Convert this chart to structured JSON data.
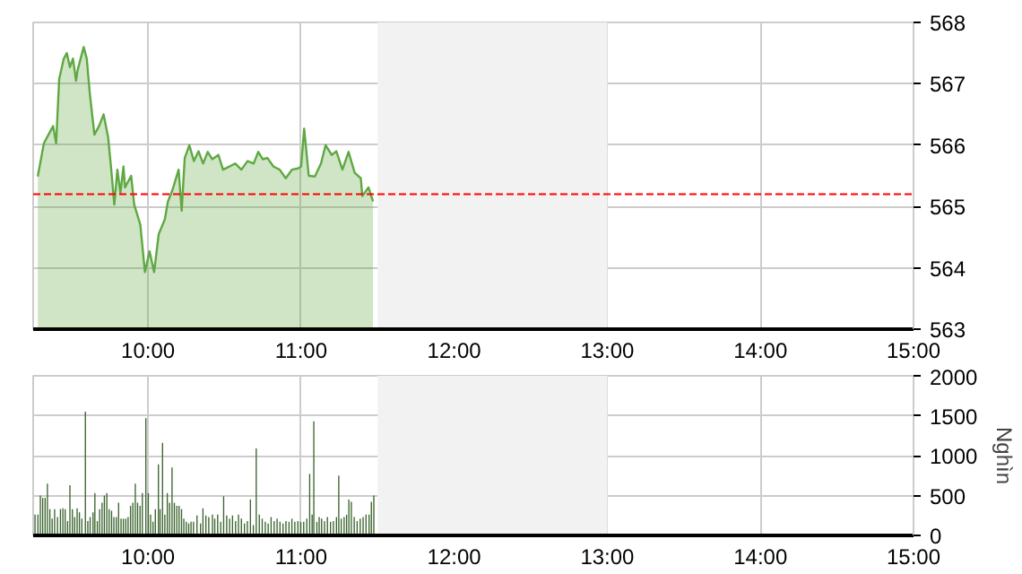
{
  "chart_data": [
    {
      "type": "area",
      "x": [
        9.28,
        9.32,
        9.35,
        9.38,
        9.4,
        9.42,
        9.45,
        9.47,
        9.49,
        9.51,
        9.53,
        9.54,
        9.58,
        9.6,
        9.62,
        9.65,
        9.68,
        9.71,
        9.74,
        9.76,
        9.78,
        9.8,
        9.82,
        9.84,
        9.85,
        9.89,
        9.91,
        9.95,
        9.98,
        10.01,
        10.04,
        10.07,
        10.11,
        10.13,
        10.16,
        10.2,
        10.22,
        10.24,
        10.27,
        10.3,
        10.33,
        10.36,
        10.39,
        10.42,
        10.46,
        10.49,
        10.53,
        10.57,
        10.61,
        10.65,
        10.69,
        10.72,
        10.75,
        10.78,
        10.82,
        10.86,
        10.9,
        10.94,
        10.98,
        11.0,
        11.02,
        11.05,
        11.09,
        11.13,
        11.16,
        11.2,
        11.23,
        11.27,
        11.31,
        11.35,
        11.39,
        11.4,
        11.44,
        11.47
      ],
      "series": [
        {
          "color": "#5fa843",
          "values": [
            565.49,
            566.03,
            566.17,
            566.31,
            566.03,
            567.08,
            567.41,
            567.5,
            567.27,
            567.41,
            567.05,
            567.22,
            567.6,
            567.41,
            566.84,
            566.17,
            566.31,
            566.5,
            566.12,
            565.6,
            565.03,
            565.6,
            565.22,
            565.65,
            565.31,
            565.5,
            565.03,
            564.7,
            563.93,
            564.27,
            563.93,
            564.55,
            564.79,
            565.08,
            565.27,
            565.6,
            564.93,
            565.79,
            566.0,
            565.74,
            565.9,
            565.7,
            565.89,
            565.77,
            565.84,
            565.6,
            565.65,
            565.7,
            565.6,
            565.74,
            565.7,
            565.89,
            565.77,
            565.79,
            565.65,
            565.6,
            565.46,
            565.6,
            565.62,
            565.65,
            566.27,
            565.5,
            565.49,
            565.7,
            566.0,
            565.84,
            565.9,
            565.6,
            565.89,
            565.55,
            565.46,
            565.17,
            565.31,
            565.08
          ]
        }
      ],
      "xlim": [
        9.25,
        15
      ],
      "xticks": [
        {
          "value": 10,
          "label": "10:00"
        },
        {
          "value": 11,
          "label": "11:00"
        },
        {
          "value": 12,
          "label": "12:00"
        },
        {
          "value": 13,
          "label": "13:00"
        },
        {
          "value": 14,
          "label": "14:00"
        },
        {
          "value": 15,
          "label": "15:00"
        }
      ],
      "ylim": [
        563,
        568
      ],
      "yticks": [
        563,
        564,
        565,
        566,
        567,
        568
      ],
      "grid": true,
      "ref_lines": [
        {
          "axis": "y",
          "value": 565.2,
          "color": "#ff0000",
          "line_style": "dashed"
        }
      ],
      "bands": [
        {
          "axis": "x",
          "from": 11.5,
          "to": 13,
          "color": "#f2f2f2"
        }
      ]
    },
    {
      "type": "bar",
      "color": "#3d6630",
      "x": [
        9.262,
        9.281,
        9.297,
        9.312,
        9.328,
        9.343,
        9.359,
        9.374,
        9.39,
        9.409,
        9.428,
        9.444,
        9.459,
        9.475,
        9.49,
        9.506,
        9.521,
        9.537,
        9.552,
        9.568,
        9.591,
        9.607,
        9.622,
        9.641,
        9.653,
        9.669,
        9.684,
        9.7,
        9.715,
        9.731,
        9.746,
        9.762,
        9.777,
        9.793,
        9.808,
        9.824,
        9.839,
        9.855,
        9.87,
        9.886,
        9.901,
        9.917,
        9.932,
        9.948,
        9.963,
        9.986,
        10.002,
        10.017,
        10.033,
        10.048,
        10.068,
        10.079,
        10.095,
        10.11,
        10.126,
        10.141,
        10.157,
        10.172,
        10.188,
        10.203,
        10.219,
        10.234,
        10.25,
        10.266,
        10.281,
        10.297,
        10.32,
        10.343,
        10.359,
        10.378,
        10.397,
        10.421,
        10.436,
        10.455,
        10.475,
        10.494,
        10.514,
        10.533,
        10.552,
        10.572,
        10.591,
        10.61,
        10.63,
        10.649,
        10.669,
        10.688,
        10.707,
        10.727,
        10.746,
        10.766,
        10.785,
        10.804,
        10.824,
        10.843,
        10.862,
        10.882,
        10.901,
        10.921,
        10.94,
        10.959,
        10.979,
        10.998,
        11.017,
        11.037,
        11.056,
        11.072,
        11.083,
        11.103,
        11.118,
        11.134,
        11.153,
        11.172,
        11.192,
        11.211,
        11.231,
        11.246,
        11.262,
        11.281,
        11.297,
        11.312,
        11.328,
        11.347,
        11.366,
        11.386,
        11.405,
        11.424,
        11.444,
        11.459,
        11.475,
        11.494
      ],
      "values": [
        260,
        260,
        500,
        470,
        470,
        650,
        330,
        210,
        330,
        230,
        330,
        340,
        330,
        180,
        630,
        330,
        230,
        340,
        290,
        210,
        1550,
        180,
        230,
        290,
        530,
        180,
        330,
        410,
        500,
        530,
        330,
        310,
        230,
        230,
        410,
        210,
        210,
        210,
        230,
        370,
        410,
        650,
        410,
        370,
        530,
        1470,
        530,
        260,
        170,
        330,
        890,
        330,
        1160,
        260,
        530,
        410,
        850,
        410,
        370,
        370,
        330,
        210,
        170,
        150,
        170,
        170,
        250,
        150,
        340,
        250,
        230,
        260,
        210,
        260,
        170,
        490,
        250,
        210,
        250,
        180,
        260,
        210,
        150,
        180,
        450,
        130,
        1090,
        260,
        210,
        170,
        150,
        230,
        180,
        210,
        170,
        150,
        180,
        170,
        210,
        170,
        180,
        170,
        170,
        210,
        770,
        260,
        1430,
        170,
        230,
        210,
        180,
        230,
        170,
        180,
        230,
        750,
        210,
        230,
        260,
        450,
        420,
        230,
        180,
        210,
        230,
        260,
        260,
        420,
        500,
        20
      ],
      "xlim": [
        9.25,
        15
      ],
      "xticks": [
        {
          "value": 10,
          "label": "10:00"
        },
        {
          "value": 11,
          "label": "11:00"
        },
        {
          "value": 12,
          "label": "12:00"
        },
        {
          "value": 13,
          "label": "13:00"
        },
        {
          "value": 14,
          "label": "14:00"
        },
        {
          "value": 15,
          "label": "15:00"
        }
      ],
      "ylim": [
        0,
        2000
      ],
      "yticks": [
        0,
        500,
        1000,
        1500,
        2000
      ],
      "ylabel": "Nghìn",
      "grid": true,
      "bands": [
        {
          "axis": "x",
          "from": 11.5,
          "to": 13,
          "color": "#f2f2f2"
        }
      ]
    }
  ]
}
